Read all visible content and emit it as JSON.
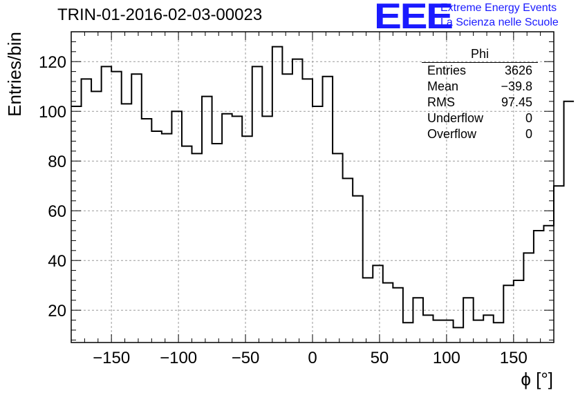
{
  "header": {
    "run_title": "TRIN-01-2016-02-03-00023",
    "logo": "EEE",
    "org_line1": "Extreme Energy Events",
    "org_line2": "La Scienza nelle Scuole"
  },
  "stats": {
    "title": "Phi",
    "rows": [
      {
        "label": "Entries",
        "value": "3626"
      },
      {
        "label": "Mean",
        "value": "−39.8"
      },
      {
        "label": "RMS",
        "value": "97.45"
      },
      {
        "label": "Underflow",
        "value": "0"
      },
      {
        "label": "Overflow",
        "value": "0"
      }
    ]
  },
  "colors": {
    "logo": "#1a1aff",
    "line": "#000000",
    "grid": "#999999"
  },
  "chart_data": {
    "type": "histogram",
    "xlabel": "ϕ [°]",
    "ylabel": "Entries/bin",
    "xlim": [
      -180,
      180
    ],
    "ylim": [
      7,
      132
    ],
    "bin_edges_start": -180,
    "bin_width": 7.5,
    "values": [
      102,
      113,
      108,
      118,
      116,
      103,
      115,
      97,
      92,
      91,
      100,
      86,
      83,
      106,
      87,
      99,
      98,
      90,
      118,
      98,
      126,
      115,
      121,
      113,
      102,
      114,
      83,
      73,
      66,
      33,
      38,
      31,
      29,
      15,
      25,
      18,
      16,
      16,
      13,
      25,
      16,
      18,
      15,
      30,
      32,
      43,
      52,
      54,
      70,
      104
    ],
    "xticks": [
      -150,
      -100,
      -50,
      0,
      50,
      100,
      150
    ],
    "yticks": [
      20,
      40,
      60,
      80,
      100,
      120
    ],
    "grid": true
  }
}
